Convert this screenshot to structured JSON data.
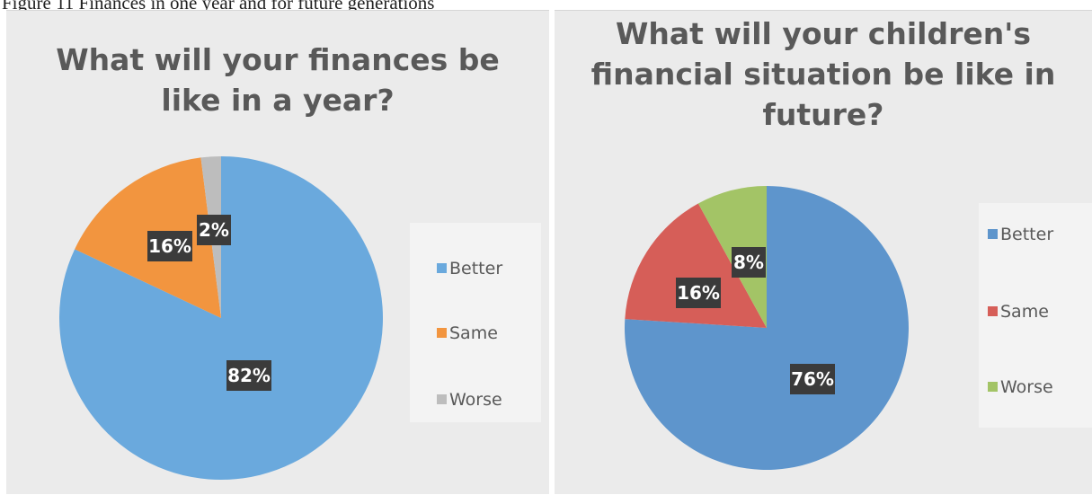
{
  "caption": "Figure 11 Finances in one year and for future generations",
  "chart_data": [
    {
      "type": "pie",
      "title": "What will your finances be like in a year?",
      "categories": [
        "Better",
        "Same",
        "Worse"
      ],
      "values": [
        82,
        16,
        2
      ],
      "data_labels": [
        "82%",
        "16%",
        "2%"
      ],
      "colors": [
        "#6aa9dd",
        "#f2953f",
        "#bdbdbd"
      ],
      "legend": "right"
    },
    {
      "type": "pie",
      "title": "What will your children's financial situation be like in future?",
      "categories": [
        "Better",
        "Same",
        "Worse"
      ],
      "values": [
        76,
        16,
        8
      ],
      "data_labels": [
        "76%",
        "16%",
        "8%"
      ],
      "colors": [
        "#5e95cc",
        "#d65e58",
        "#a3c466"
      ],
      "legend": "right"
    }
  ]
}
